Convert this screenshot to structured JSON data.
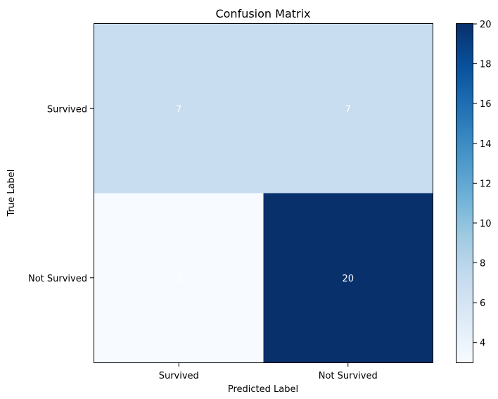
{
  "chart_data": {
    "type": "heatmap",
    "title": "Confusion Matrix",
    "xlabel": "Predicted Label",
    "ylabel": "True Label",
    "x_categories": [
      "Survived",
      "Not Survived"
    ],
    "y_categories": [
      "Survived",
      "Not Survived"
    ],
    "values": [
      [
        7,
        7
      ],
      [
        3,
        20
      ]
    ],
    "cell_labels": [
      [
        "7",
        "7"
      ],
      [
        "3",
        "20"
      ]
    ],
    "colormap": "Blues",
    "colorbar": {
      "vmin": 3,
      "vmax": 20,
      "ticks": [
        4,
        6,
        8,
        10,
        12,
        14,
        16,
        18,
        20
      ]
    },
    "colors": {
      "blues_ramp": [
        "#f7fbff",
        "#deebf7",
        "#c6dbef",
        "#9ecae1",
        "#6baed6",
        "#4292c6",
        "#2171b5",
        "#08519c",
        "#08306b"
      ],
      "cell_text": "#ffffff",
      "axis": "#000000"
    }
  }
}
